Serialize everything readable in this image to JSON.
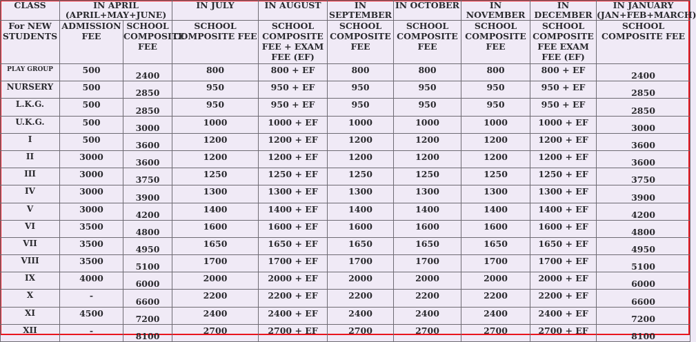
{
  "header": {
    "class": "CLASS",
    "april": "IN APRIL (APRIL+MAY+JUNE)",
    "july": "IN JULY",
    "august": "IN AUGUST",
    "september": "IN SEPTEMBER",
    "october": "IN OCTOBER",
    "november": "IN NOVEMBER",
    "december": "IN DECEMBER",
    "january": "IN JANUARY (JAN+FEB+MARCH)",
    "new_students": "For NEW STUDENTS",
    "admission_fee": "ADMISSION FEE",
    "school_composite_fee": "SCHOOL COMPOSITE FEE",
    "august_fee": "SCHOOL COMPOSITE FEE + EXAM FEE (EF)",
    "december_fee": "SCHOOL COMPOSITE FEE EXAM FEE (EF)"
  },
  "rows": [
    [
      "PLAY GROUP",
      "500",
      "2400",
      "800",
      "800 + EF",
      "800",
      "800",
      "800",
      "800 + EF",
      "2400"
    ],
    [
      "NURSERY",
      "500",
      "2850",
      "950",
      "950 + EF",
      "950",
      "950",
      "950",
      "950 + EF",
      "2850"
    ],
    [
      "L.K.G.",
      "500",
      "2850",
      "950",
      "950 + EF",
      "950",
      "950",
      "950",
      "950 + EF",
      "2850"
    ],
    [
      "U.K.G.",
      "500",
      "3000",
      "1000",
      "1000 + EF",
      "1000",
      "1000",
      "1000",
      "1000 + EF",
      "3000"
    ],
    [
      "I",
      "500",
      "3600",
      "1200",
      "1200 + EF",
      "1200",
      "1200",
      "1200",
      "1200 + EF",
      "3600"
    ],
    [
      "II",
      "3000",
      "3600",
      "1200",
      "1200 + EF",
      "1200",
      "1200",
      "1200",
      "1200 + EF",
      "3600"
    ],
    [
      "III",
      "3000",
      "3750",
      "1250",
      "1250 + EF",
      "1250",
      "1250",
      "1250",
      "1250 + EF",
      "3750"
    ],
    [
      "IV",
      "3000",
      "3900",
      "1300",
      "1300 + EF",
      "1300",
      "1300",
      "1300",
      "1300 + EF",
      "3900"
    ],
    [
      "V",
      "3000",
      "4200",
      "1400",
      "1400 + EF",
      "1400",
      "1400",
      "1400",
      "1400 + EF",
      "4200"
    ],
    [
      "VI",
      "3500",
      "4800",
      "1600",
      "1600 + EF",
      "1600",
      "1600",
      "1600",
      "1600 + EF",
      "4800"
    ],
    [
      "VII",
      "3500",
      "4950",
      "1650",
      "1650 + EF",
      "1650",
      "1650",
      "1650",
      "1650 + EF",
      "4950"
    ],
    [
      "VIII",
      "3500",
      "5100",
      "1700",
      "1700 + EF",
      "1700",
      "1700",
      "1700",
      "1700 + EF",
      "5100"
    ],
    [
      "IX",
      "4000",
      "6000",
      "2000",
      "2000 + EF",
      "2000",
      "2000",
      "2000",
      "2000 + EF",
      "6000"
    ],
    [
      "X",
      "-",
      "6600",
      "2200",
      "2200 + EF",
      "2200",
      "2200",
      "2200",
      "2200 + EF",
      "6600"
    ],
    [
      "XI",
      "4500",
      "7200",
      "2400",
      "2400 + EF",
      "2400",
      "2400",
      "2400",
      "2400 + EF",
      "7200"
    ],
    [
      "XII",
      "-",
      "8100",
      "2700",
      "2700 + EF",
      "2700",
      "2700",
      "2700",
      "2700 + EF",
      "8100"
    ]
  ]
}
